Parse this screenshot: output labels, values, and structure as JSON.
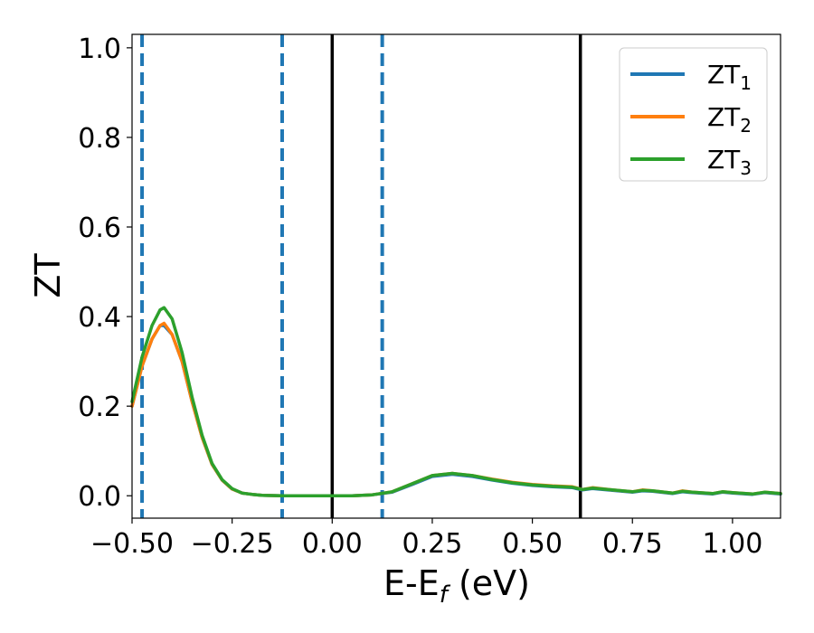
{
  "chart_data": {
    "type": "line",
    "title": "",
    "xlabel_main": "E-E",
    "xlabel_sub": "f",
    "xlabel_unit": " (eV)",
    "ylabel": "ZT",
    "xlim": [
      -0.5,
      1.12
    ],
    "ylim": [
      -0.05,
      1.03
    ],
    "grid": false,
    "legend_position": "top-right",
    "x_ticks": [
      -0.5,
      -0.25,
      0.0,
      0.25,
      0.5,
      0.75,
      1.0
    ],
    "x_tick_labels": [
      "−0.50",
      "−0.25",
      "0.00",
      "0.25",
      "0.50",
      "0.75",
      "1.00"
    ],
    "y_ticks": [
      0.0,
      0.2,
      0.4,
      0.6,
      0.8,
      1.0
    ],
    "y_tick_labels": [
      "0.0",
      "0.2",
      "0.4",
      "0.6",
      "0.8",
      "1.0"
    ],
    "vlines": [
      {
        "x": -0.475,
        "style": "dashed",
        "color": "#1f77b4"
      },
      {
        "x": -0.125,
        "style": "dashed",
        "color": "#1f77b4"
      },
      {
        "x": 0.125,
        "style": "dashed",
        "color": "#1f77b4"
      },
      {
        "x": 0.0,
        "style": "solid",
        "color": "#000000"
      },
      {
        "x": 0.62,
        "style": "solid",
        "color": "#000000"
      }
    ],
    "x": [
      -0.5,
      -0.475,
      -0.45,
      -0.43,
      -0.42,
      -0.4,
      -0.375,
      -0.35,
      -0.325,
      -0.3,
      -0.275,
      -0.25,
      -0.225,
      -0.2,
      -0.175,
      -0.15,
      -0.125,
      -0.1,
      -0.05,
      0.0,
      0.05,
      0.1,
      0.15,
      0.2,
      0.25,
      0.3,
      0.35,
      0.4,
      0.45,
      0.5,
      0.55,
      0.6,
      0.625,
      0.65,
      0.7,
      0.75,
      0.775,
      0.8,
      0.85,
      0.875,
      0.9,
      0.95,
      0.975,
      1.0,
      1.05,
      1.08,
      1.12
    ],
    "series": [
      {
        "name_main": "ZT",
        "name_sub": "1",
        "color": "#1f77b4",
        "values": [
          0.2,
          0.29,
          0.35,
          0.38,
          0.38,
          0.36,
          0.3,
          0.21,
          0.13,
          0.07,
          0.035,
          0.015,
          0.006,
          0.003,
          0.001,
          0.0005,
          0.0,
          0.0,
          0.0,
          0.0,
          0.0,
          0.002,
          0.008,
          0.025,
          0.043,
          0.048,
          0.043,
          0.035,
          0.028,
          0.023,
          0.02,
          0.018,
          0.013,
          0.016,
          0.012,
          0.008,
          0.011,
          0.01,
          0.005,
          0.009,
          0.007,
          0.004,
          0.008,
          0.006,
          0.003,
          0.007,
          0.004
        ]
      },
      {
        "name_main": "ZT",
        "name_sub": "2",
        "color": "#ff7f0e",
        "values": [
          0.2,
          0.29,
          0.35,
          0.38,
          0.385,
          0.36,
          0.3,
          0.21,
          0.13,
          0.07,
          0.035,
          0.015,
          0.006,
          0.003,
          0.001,
          0.0005,
          0.0,
          0.0,
          0.0,
          0.0,
          0.0,
          0.002,
          0.009,
          0.027,
          0.045,
          0.05,
          0.045,
          0.037,
          0.03,
          0.025,
          0.022,
          0.02,
          0.014,
          0.018,
          0.013,
          0.009,
          0.013,
          0.011,
          0.006,
          0.011,
          0.008,
          0.005,
          0.009,
          0.007,
          0.004,
          0.008,
          0.005
        ]
      },
      {
        "name_main": "ZT",
        "name_sub": "3",
        "color": "#2ca02c",
        "values": [
          0.21,
          0.31,
          0.38,
          0.415,
          0.42,
          0.395,
          0.32,
          0.22,
          0.135,
          0.072,
          0.036,
          0.016,
          0.006,
          0.003,
          0.001,
          0.0005,
          0.0,
          0.0,
          0.0,
          0.0,
          0.0,
          0.002,
          0.009,
          0.027,
          0.045,
          0.05,
          0.045,
          0.036,
          0.029,
          0.024,
          0.021,
          0.019,
          0.014,
          0.017,
          0.013,
          0.009,
          0.012,
          0.011,
          0.006,
          0.01,
          0.008,
          0.005,
          0.009,
          0.007,
          0.004,
          0.008,
          0.005
        ]
      }
    ]
  }
}
